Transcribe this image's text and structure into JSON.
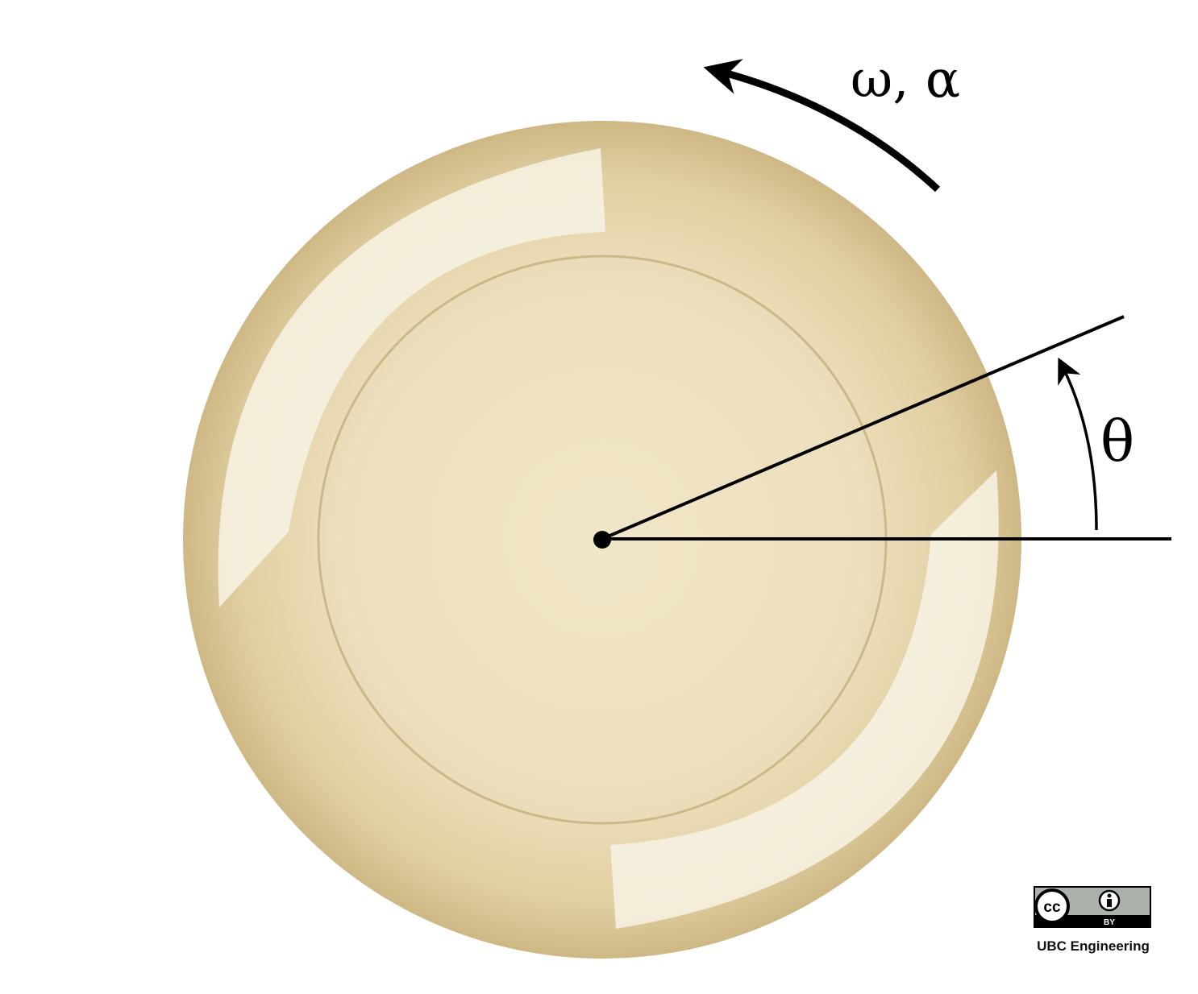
{
  "labels": {
    "omega_alpha": "ω, α",
    "theta": "θ"
  },
  "license": {
    "cc_text": "cc",
    "by_text": "BY",
    "credit": "UBC Engineering"
  },
  "colors": {
    "disk_edge": "#d2bd8c",
    "disk_mid": "#e4d2a6",
    "disk_center": "#f1e6c8",
    "highlight": "#f6f1e3",
    "inner_ring": "#cbb889",
    "line": "#000000",
    "badge_gray": "#aab2ab"
  }
}
